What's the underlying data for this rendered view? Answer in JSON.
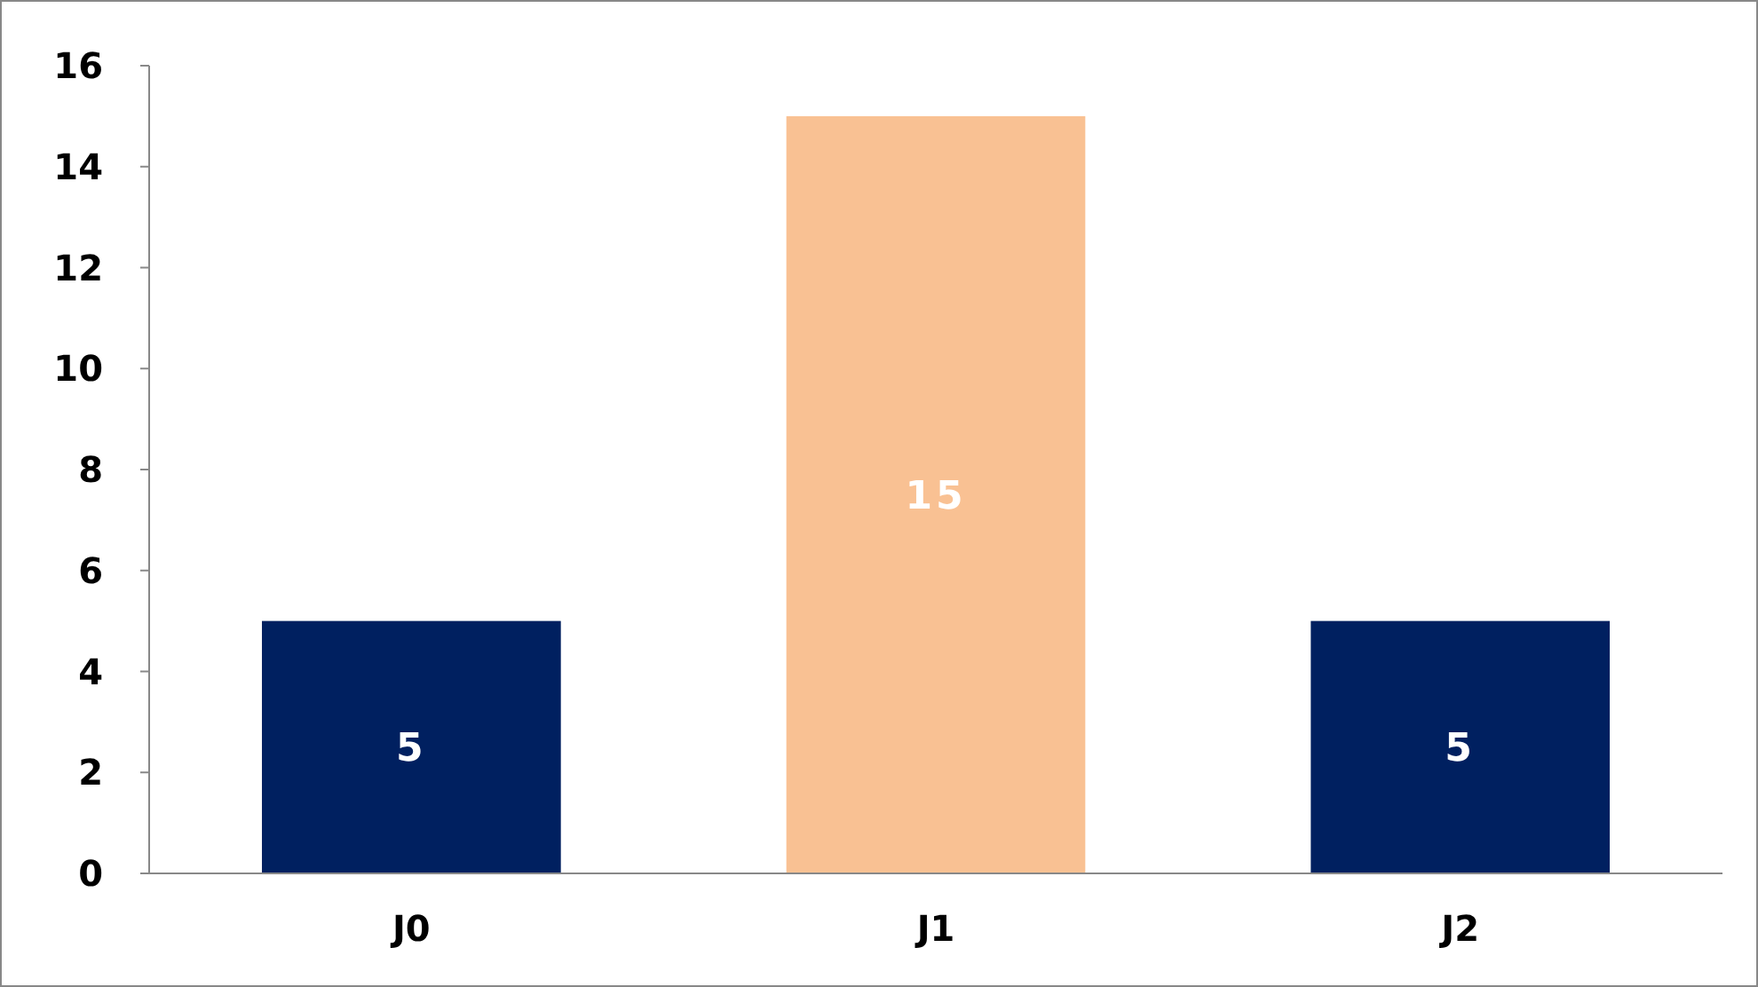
{
  "chart_data": {
    "type": "bar",
    "categories": [
      "J0",
      "J1",
      "J2"
    ],
    "values": [
      5,
      15,
      5
    ],
    "colors": [
      "#002060",
      "#f9c193",
      "#002060"
    ],
    "ylim": [
      0,
      16
    ],
    "yticks": [
      0,
      2,
      4,
      6,
      8,
      10,
      12,
      14,
      16
    ],
    "grid": false,
    "data_labels": true
  }
}
